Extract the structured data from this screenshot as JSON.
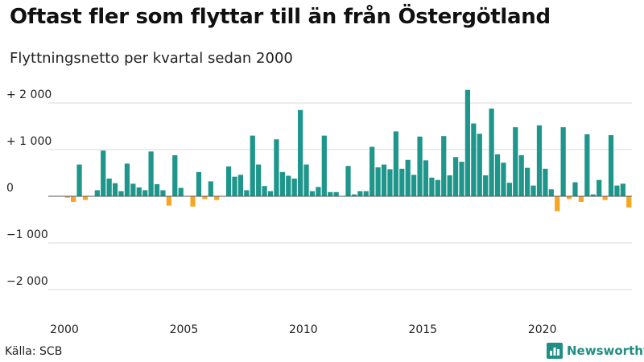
{
  "header": {
    "title": "Oftast fler som flyttar till än från Östergötland",
    "subtitle": "Flyttningsnetto per kvartal sedan 2000"
  },
  "footer": {
    "source": "Källa: SCB",
    "brand": "Newsworthy",
    "brand_icon": "bar-chart-logo-icon"
  },
  "colors": {
    "positive": "#1f968b",
    "negative": "#f5a623",
    "grid": "#d9d9d9",
    "zero_line": "#555555",
    "brand": "#1f8f85"
  },
  "chart_data": {
    "type": "bar",
    "title": "Oftast fler som flyttar till än från Östergötland",
    "subtitle": "Flyttningsnetto per kvartal sedan 2000",
    "xlabel": "",
    "ylabel": "",
    "ylim": [
      -2500,
      2500
    ],
    "yticks": [
      2000,
      1000,
      0,
      -1000,
      -2000
    ],
    "ytick_labels": [
      "+ 2 000",
      "+ 1 000",
      "0",
      "−1 000",
      "−2 000"
    ],
    "xtick_labels": [
      "2000",
      "2005",
      "2010",
      "2015",
      "2020"
    ],
    "xtick_years": [
      2000,
      2005,
      2010,
      2015,
      2020
    ],
    "grid": true,
    "start_year": 2000,
    "periods_per_year": 4,
    "values": [
      -30,
      -120,
      680,
      -80,
      0,
      130,
      980,
      380,
      280,
      110,
      700,
      270,
      190,
      130,
      960,
      260,
      130,
      -200,
      880,
      180,
      0,
      -220,
      520,
      -60,
      320,
      -80,
      0,
      640,
      420,
      460,
      130,
      1300,
      680,
      220,
      110,
      1220,
      520,
      440,
      380,
      1850,
      680,
      110,
      200,
      1300,
      90,
      90,
      0,
      650,
      40,
      110,
      110,
      1060,
      620,
      680,
      580,
      1390,
      590,
      780,
      460,
      1280,
      770,
      400,
      350,
      1290,
      450,
      840,
      740,
      2280,
      1560,
      1340,
      450,
      1880,
      900,
      720,
      290,
      1480,
      880,
      610,
      230,
      1520,
      590,
      150,
      -320,
      1480,
      -60,
      300,
      -120,
      1330,
      40,
      350,
      -80,
      1310,
      230,
      270,
      -240
    ]
  }
}
